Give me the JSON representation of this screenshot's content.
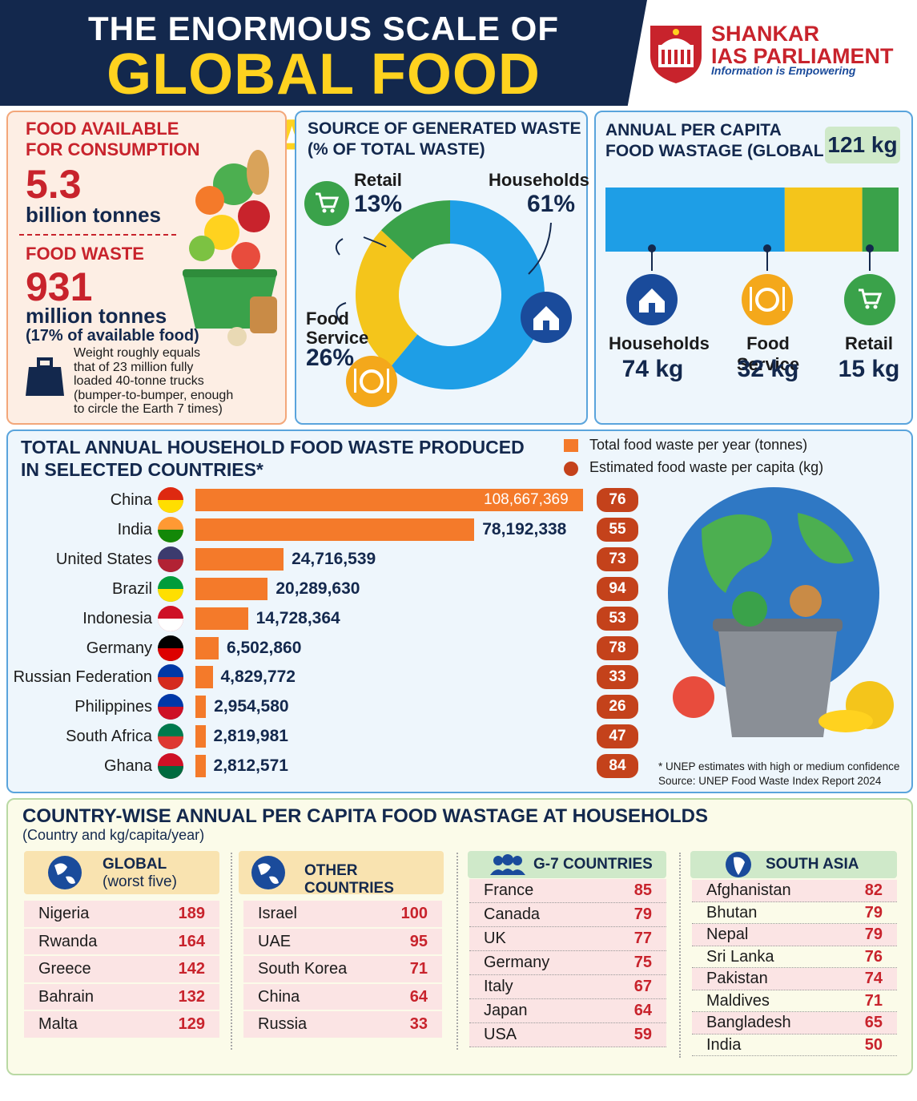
{
  "header": {
    "line1": "THE ENORMOUS SCALE OF",
    "line2": "GLOBAL FOOD WASTE",
    "brand_line1": "SHANKAR",
    "brand_line2": "IAS PARLIAMENT",
    "tagline": "Information is Empowering"
  },
  "consumption": {
    "title1": "FOOD AVAILABLE",
    "title2": "FOR CONSUMPTION",
    "value": "5.3",
    "unit": "billion tonnes",
    "waste_title": "FOOD WASTE",
    "waste_value": "931",
    "waste_unit": "million tonnes",
    "waste_share": "(17% of available food)",
    "note1": "Weight roughly equals",
    "note2": "that of 23 million fully",
    "note3": "loaded 40-tonne trucks",
    "note4": "(bumper-to-bumper, enough",
    "note5": "to circle the Earth 7 times)"
  },
  "source_panel": {
    "title1": "SOURCE OF GENERATED WASTE",
    "title2": "(% OF TOTAL WASTE)",
    "retail_label": "Retail",
    "retail_pct": "13%",
    "households_label": "Households",
    "households_pct": "61%",
    "food_label1": "Food",
    "food_label2": "Service",
    "food_pct": "26%"
  },
  "per_capita": {
    "title1": "ANNUAL PER CAPITA",
    "title2": "FOOD WASTAGE (GLOBALLY)",
    "total": "121 kg",
    "households_label": "Households",
    "households_value": "74 kg",
    "food_label": "Food Service",
    "food_value": "32 kg",
    "retail_label": "Retail",
    "retail_value": "15 kg"
  },
  "countries_panel": {
    "title1": "TOTAL ANNUAL HOUSEHOLD FOOD WASTE PRODUCED",
    "title2": "IN SELECTED COUNTRIES*",
    "legend1": "Total food waste per year (tonnes)",
    "legend2": "Estimated food waste per capita (kg)",
    "note1": "* UNEP estimates with high or medium confidence",
    "note2": "Source: UNEP Food Waste Index Report 2024"
  },
  "chart_data": [
    {
      "type": "pie",
      "title": "SOURCE OF GENERATED WASTE (% OF TOTAL WASTE)",
      "labels": [
        "Households",
        "Food Service",
        "Retail"
      ],
      "values": [
        61,
        26,
        13
      ],
      "colors": [
        "#1e9ee6",
        "#f4c51b",
        "#3aa24a"
      ]
    },
    {
      "type": "bar",
      "title": "TOTAL ANNUAL HOUSEHOLD FOOD WASTE PRODUCED IN SELECTED COUNTRIES*",
      "categories": [
        "China",
        "India",
        "United States",
        "Brazil",
        "Indonesia",
        "Germany",
        "Russian Federation",
        "Philippines",
        "South Africa",
        "Ghana"
      ],
      "series": [
        {
          "name": "Total food waste per year (tonnes)",
          "values": [
            108667369,
            78192338,
            24716539,
            20289630,
            14728364,
            6502860,
            4829772,
            2954580,
            2819981,
            2812571
          ]
        },
        {
          "name": "Estimated food waste per capita (kg)",
          "values": [
            76,
            55,
            73,
            94,
            53,
            78,
            33,
            26,
            47,
            84
          ]
        }
      ],
      "value_labels": [
        "108,667,369",
        "78,192,338",
        "24,716,539",
        "20,289,630",
        "14,728,364",
        "6,502,860",
        "4,829,772",
        "2,954,580",
        "2,819,981",
        "2,812,571"
      ],
      "per_capita_labels": [
        "76",
        "55",
        "73",
        "94",
        "53",
        "78",
        "33",
        "26",
        "47",
        "84"
      ]
    },
    {
      "type": "bar",
      "title": "ANNUAL PER CAPITA FOOD WASTAGE (GLOBALLY)",
      "categories": [
        "Households",
        "Food Service",
        "Retail"
      ],
      "values": [
        74,
        32,
        15
      ],
      "colors": [
        "#1e9ee6",
        "#f4c51b",
        "#3aa24a"
      ]
    }
  ],
  "wastage": {
    "title": "COUNTRY-WISE ANNUAL PER CAPITA FOOD WASTAGE AT HOUSEHOLDS",
    "subtitle": "(Country and kg/capita/year)",
    "global_head1": "GLOBAL",
    "global_head2": "(worst five)",
    "global": [
      [
        "Nigeria",
        "189"
      ],
      [
        "Rwanda",
        "164"
      ],
      [
        "Greece",
        "142"
      ],
      [
        "Bahrain",
        "132"
      ],
      [
        "Malta",
        "129"
      ]
    ],
    "other_head": "OTHER COUNTRIES",
    "other": [
      [
        "Israel",
        "100"
      ],
      [
        "UAE",
        "95"
      ],
      [
        "South Korea",
        "71"
      ],
      [
        "China",
        "64"
      ],
      [
        "Russia",
        "33"
      ]
    ],
    "g7_head": "G-7 COUNTRIES",
    "g7": [
      [
        "France",
        "85"
      ],
      [
        "Canada",
        "79"
      ],
      [
        "UK",
        "77"
      ],
      [
        "Germany",
        "75"
      ],
      [
        "Italy",
        "67"
      ],
      [
        "Japan",
        "64"
      ],
      [
        "USA",
        "59"
      ]
    ],
    "sa_head": "SOUTH ASIA",
    "sa": [
      [
        "Afghanistan",
        "82"
      ],
      [
        "Bhutan",
        "79"
      ],
      [
        "Nepal",
        "79"
      ],
      [
        "Sri Lanka",
        "76"
      ],
      [
        "Pakistan",
        "74"
      ],
      [
        "Maldives",
        "71"
      ],
      [
        "Bangladesh",
        "65"
      ],
      [
        "India",
        "50"
      ]
    ]
  },
  "colors": {
    "navy": "#13284d",
    "gold": "#ffd21f",
    "red": "#c8232c",
    "orange_bar": "#f47a2a",
    "badge": "#c4421b",
    "blue": "#1e9ee6",
    "yellow": "#f4c51b",
    "green": "#3aa24a"
  }
}
